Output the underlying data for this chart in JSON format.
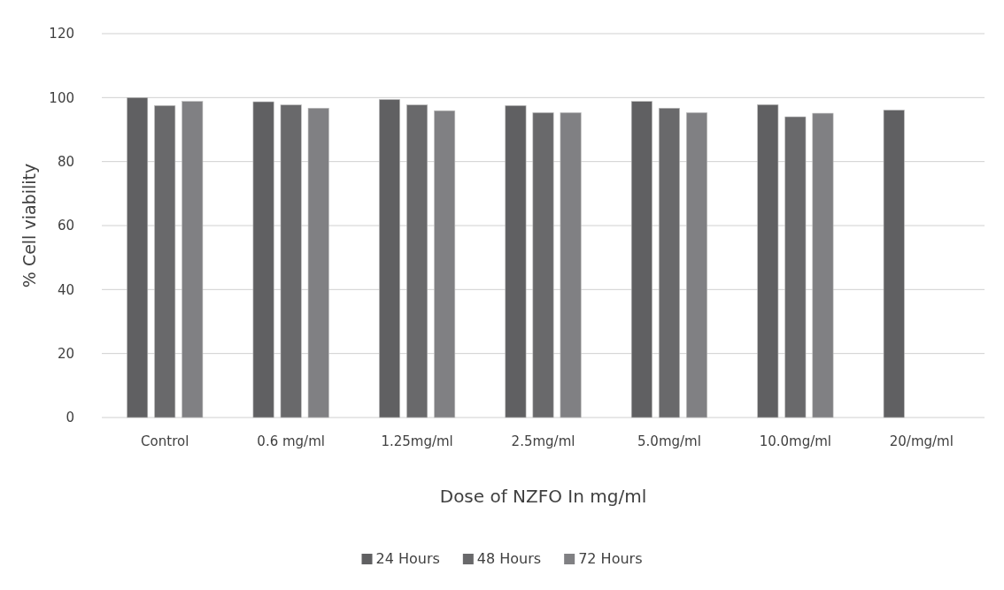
{
  "chart_data": {
    "type": "bar",
    "xlabel": "Dose of NZFO In mg/ml",
    "ylabel": "% Cell viability",
    "categories": [
      "Control",
      "0.6 mg/ml",
      "1.25mg/ml",
      "2.5mg/ml",
      "5.0mg/ml",
      "10.0mg/ml",
      "20/mg/ml"
    ],
    "series": [
      {
        "name": "24 Hours",
        "color": "#606062",
        "values": [
          100,
          98.7,
          99.4,
          97.5,
          98.8,
          97.8,
          96.1
        ]
      },
      {
        "name": "48 Hours",
        "color": "#69696b",
        "values": [
          97.5,
          97.7,
          97.7,
          95.3,
          96.7,
          94.0,
          null
        ]
      },
      {
        "name": "72 Hours",
        "color": "#808083",
        "values": [
          98.8,
          96.7,
          95.9,
          95.3,
          95.3,
          95.1,
          null
        ]
      }
    ],
    "ylim": [
      0,
      120
    ],
    "yticks": [
      0,
      20,
      40,
      60,
      80,
      100,
      120
    ],
    "grid": "y",
    "legend": "bottom"
  }
}
